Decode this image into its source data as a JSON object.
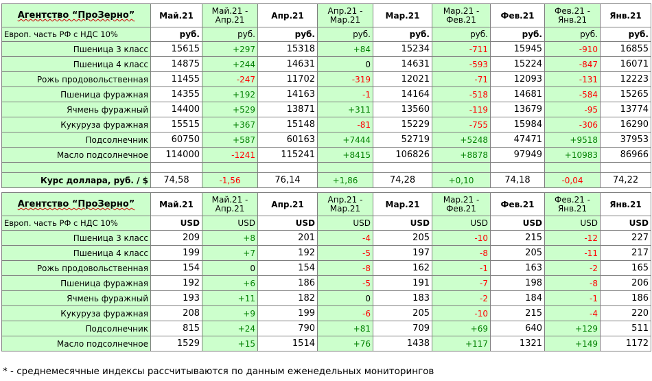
{
  "columns": [
    "Май.21",
    "Май.21 - Апр.21",
    "Апр.21",
    "Апр.21 - Мар.21",
    "Мар.21",
    "Мар.21 - Фев.21",
    "Фев.21",
    "Фев.21 - Янв.21",
    "Янв.21"
  ],
  "rub_section": {
    "agency": "Агентство “ПроЗерно”",
    "unit_label": "Европ. часть РФ с НДС 10%",
    "units": [
      "руб.",
      "руб.",
      "руб.",
      "руб.",
      "руб.",
      "руб.",
      "руб.",
      "руб.",
      "руб."
    ],
    "rows": [
      {
        "name": "Пшеница 3 класс",
        "values": [
          "15615",
          "+297",
          "15318",
          "+84",
          "15234",
          "-711",
          "15945",
          "-910",
          "16855"
        ]
      },
      {
        "name": "Пшеница 4 класс",
        "values": [
          "14875",
          "+244",
          "14631",
          "0",
          "14631",
          "-593",
          "15224",
          "-847",
          "16071"
        ]
      },
      {
        "name": "Рожь продовольственная",
        "values": [
          "11455",
          "-247",
          "11702",
          "-319",
          "12021",
          "-71",
          "12093",
          "-131",
          "12223"
        ]
      },
      {
        "name": "Пшеница фуражная",
        "values": [
          "14355",
          "+192",
          "14163",
          "-1",
          "14164",
          "-518",
          "14681",
          "-584",
          "15265"
        ]
      },
      {
        "name": "Ячмень фуражный",
        "values": [
          "14400",
          "+529",
          "13871",
          "+311",
          "13560",
          "-119",
          "13679",
          "-95",
          "13774"
        ]
      },
      {
        "name": "Кукуруза фуражная",
        "values": [
          "15515",
          "+367",
          "15148",
          "-81",
          "15229",
          "-755",
          "15984",
          "-306",
          "16290"
        ]
      },
      {
        "name": "Подсолнечник",
        "values": [
          "60750",
          "+587",
          "60163",
          "+7444",
          "52719",
          "+5248",
          "47471",
          "+9518",
          "37953"
        ]
      },
      {
        "name": "Масло подсолнечное",
        "values": [
          "114000",
          "-1241",
          "115241",
          "+8415",
          "106826",
          "+8878",
          "97949",
          "+10983",
          "86966"
        ]
      }
    ],
    "rate": {
      "name": "Курс доллара, руб. / $",
      "values": [
        "74,58",
        "-1,56",
        "76,14",
        "+1,86",
        "74,28",
        "+0,10",
        "74,18",
        "-0,04",
        "74,22"
      ]
    }
  },
  "usd_section": {
    "agency": "Агентство “ПроЗерно”",
    "unit_label": "Европ. часть РФ с НДС 10%",
    "units": [
      "USD",
      "USD",
      "USD",
      "USD",
      "USD",
      "USD",
      "USD",
      "USD",
      "USD"
    ],
    "rows": [
      {
        "name": "Пшеница 3 класс",
        "values": [
          "209",
          "+8",
          "201",
          "-4",
          "205",
          "-10",
          "215",
          "-12",
          "227"
        ]
      },
      {
        "name": "Пшеница 4 класс",
        "values": [
          "199",
          "+7",
          "192",
          "-5",
          "197",
          "-8",
          "205",
          "-11",
          "217"
        ]
      },
      {
        "name": "Рожь продовольственная",
        "values": [
          "154",
          "0",
          "154",
          "-8",
          "162",
          "-1",
          "163",
          "-2",
          "165"
        ]
      },
      {
        "name": "Пшеница фуражная",
        "values": [
          "192",
          "+6",
          "186",
          "-5",
          "191",
          "-7",
          "198",
          "-8",
          "206"
        ]
      },
      {
        "name": "Ячмень фуражный",
        "values": [
          "193",
          "+11",
          "182",
          "0",
          "183",
          "-2",
          "184",
          "-1",
          "186"
        ]
      },
      {
        "name": "Кукуруза фуражная",
        "values": [
          "208",
          "+9",
          "199",
          "-6",
          "205",
          "-10",
          "215",
          "-4",
          "220"
        ]
      },
      {
        "name": "Подсолнечник",
        "values": [
          "815",
          "+24",
          "790",
          "+81",
          "709",
          "+69",
          "640",
          "+129",
          "511"
        ]
      },
      {
        "name": "Масло подсолнечное",
        "values": [
          "1529",
          "+15",
          "1514",
          "+76",
          "1438",
          "+117",
          "1321",
          "+149",
          "1172"
        ]
      }
    ]
  },
  "footnote": "* - среднемесячные индексы рассчитываются по данным еженедельных мониторингов",
  "colors": {
    "label_bg": "#ccffcc",
    "positive": "#008000",
    "negative": "#ff0000",
    "border": "#7f7f7f"
  }
}
